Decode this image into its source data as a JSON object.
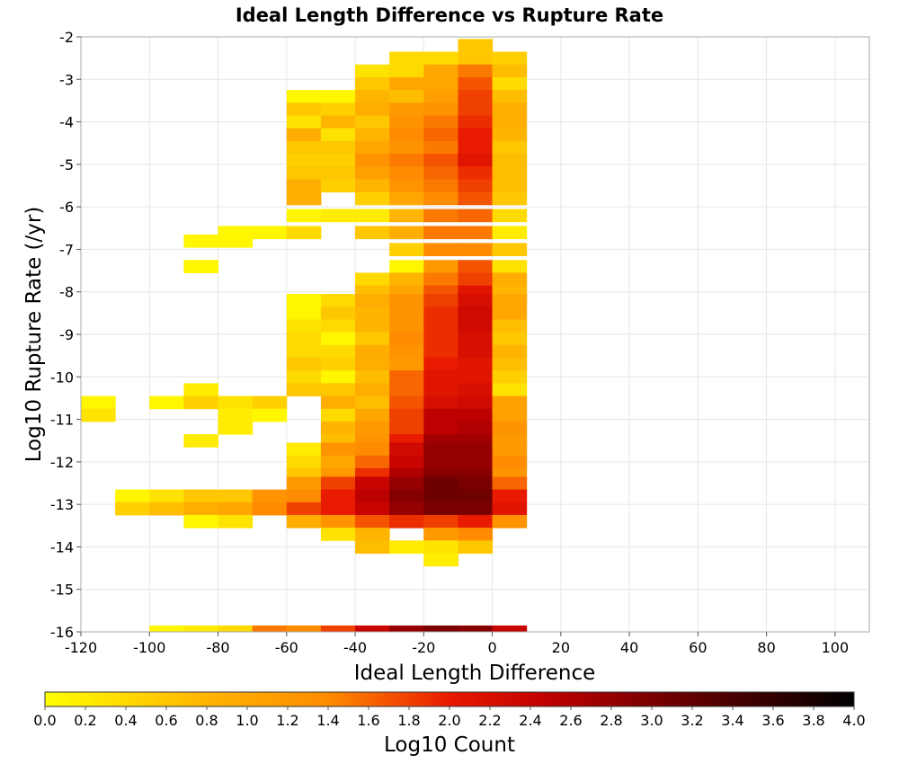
{
  "chart_data": {
    "type": "heatmap",
    "title": "Ideal Length Difference vs Rupture Rate",
    "xlabel": "Ideal Length Difference",
    "ylabel": "Log10 Rupture Rate (/yr)",
    "xlim": [
      -120,
      110
    ],
    "ylim": [
      -16,
      -2
    ],
    "x_ticks": [
      "-120",
      "-100",
      "-80",
      "-60",
      "-40",
      "-20",
      "0",
      "20",
      "40",
      "60",
      "80",
      "100"
    ],
    "y_ticks": [
      "-2",
      "-3",
      "-4",
      "-5",
      "-6",
      "-7",
      "-8",
      "-9",
      "-10",
      "-11",
      "-12",
      "-13",
      "-14",
      "-15",
      "-16"
    ],
    "grid": true,
    "bin_width_x": 10,
    "bin_width_y": 0.3,
    "x_bin_starts": [
      -120,
      -110,
      -100,
      -90,
      -80,
      -70,
      -60,
      -50,
      -40,
      -30,
      -20,
      -10,
      0
    ],
    "colorbar": {
      "label": "Log10 Count",
      "min": 0.0,
      "max": 4.0,
      "ticks": [
        "0.0",
        "0.2",
        "0.4",
        "0.6",
        "0.8",
        "1.0",
        "1.2",
        "1.4",
        "1.6",
        "1.8",
        "2.0",
        "2.2",
        "2.4",
        "2.6",
        "2.8",
        "3.0",
        "3.2",
        "3.4",
        "3.6",
        "3.8",
        "4.0"
      ],
      "placement": "bottom"
    },
    "columns": [
      {
        "x": -120,
        "cells": [
          [
            -10.6,
            0.1
          ],
          [
            -10.9,
            0.3
          ]
        ]
      },
      {
        "x": -110,
        "cells": [
          [
            -12.8,
            0.1
          ],
          [
            -13.1,
            0.5
          ]
        ]
      },
      {
        "x": -100,
        "cells": [
          [
            -10.6,
            0.1
          ],
          [
            -12.8,
            0.3
          ],
          [
            -13.1,
            0.7
          ],
          [
            -16.0,
            0.1
          ]
        ]
      },
      {
        "x": -90,
        "cells": [
          [
            -6.8,
            0.1
          ],
          [
            -7.4,
            0.1
          ],
          [
            -10.3,
            0.2
          ],
          [
            -10.6,
            0.5
          ],
          [
            -11.5,
            0.2
          ],
          [
            -12.8,
            0.6
          ],
          [
            -13.1,
            0.9
          ],
          [
            -13.4,
            0.1
          ],
          [
            -16.0,
            0.2
          ]
        ]
      },
      {
        "x": -80,
        "cells": [
          [
            -6.6,
            0.1
          ],
          [
            -6.8,
            0.1
          ],
          [
            -10.6,
            0.3
          ],
          [
            -10.9,
            0.2
          ],
          [
            -11.2,
            0.2
          ],
          [
            -12.8,
            0.6
          ],
          [
            -13.1,
            1.0
          ],
          [
            -13.4,
            0.3
          ],
          [
            -16.0,
            0.4
          ]
        ]
      },
      {
        "x": -70,
        "cells": [
          [
            -6.6,
            0.1
          ],
          [
            -10.6,
            0.5
          ],
          [
            -10.9,
            0.1
          ],
          [
            -12.8,
            1.3
          ],
          [
            -13.1,
            1.4
          ],
          [
            -16.0,
            1.5
          ]
        ]
      },
      {
        "x": -60,
        "cells": [
          [
            -3.4,
            0.1
          ],
          [
            -3.7,
            0.6
          ],
          [
            -4.0,
            0.3
          ],
          [
            -4.3,
            0.9
          ],
          [
            -4.6,
            0.6
          ],
          [
            -4.9,
            0.5
          ],
          [
            -5.2,
            0.6
          ],
          [
            -5.5,
            0.9
          ],
          [
            -5.8,
            0.9
          ],
          [
            -6.2,
            0.1
          ],
          [
            -6.6,
            0.4
          ],
          [
            -8.2,
            0.1
          ],
          [
            -8.5,
            0.1
          ],
          [
            -8.8,
            0.3
          ],
          [
            -9.1,
            0.4
          ],
          [
            -9.4,
            0.4
          ],
          [
            -9.7,
            0.6
          ],
          [
            -10.0,
            0.4
          ],
          [
            -10.3,
            0.6
          ],
          [
            -11.7,
            0.2
          ],
          [
            -12.0,
            0.4
          ],
          [
            -12.3,
            0.6
          ],
          [
            -12.5,
            1.2
          ],
          [
            -12.8,
            1.4
          ],
          [
            -13.1,
            1.8
          ],
          [
            -13.4,
            0.9
          ],
          [
            -16.0,
            1.4
          ]
        ]
      },
      {
        "x": -50,
        "cells": [
          [
            -3.4,
            0.1
          ],
          [
            -3.7,
            0.5
          ],
          [
            -4.0,
            0.8
          ],
          [
            -4.3,
            0.3
          ],
          [
            -4.6,
            0.6
          ],
          [
            -4.9,
            0.5
          ],
          [
            -5.2,
            0.6
          ],
          [
            -5.5,
            0.5
          ],
          [
            -6.2,
            0.2
          ],
          [
            -8.2,
            0.4
          ],
          [
            -8.5,
            0.6
          ],
          [
            -8.8,
            0.4
          ],
          [
            -9.1,
            0.1
          ],
          [
            -9.4,
            0.4
          ],
          [
            -9.7,
            0.5
          ],
          [
            -10.0,
            0.1
          ],
          [
            -10.3,
            0.6
          ],
          [
            -10.6,
            0.9
          ],
          [
            -10.9,
            0.4
          ],
          [
            -11.2,
            0.8
          ],
          [
            -11.5,
            0.7
          ],
          [
            -11.7,
            1.3
          ],
          [
            -12.0,
            1.0
          ],
          [
            -12.3,
            1.2
          ],
          [
            -12.5,
            1.8
          ],
          [
            -12.8,
            2.0
          ],
          [
            -13.1,
            2.0
          ],
          [
            -13.4,
            1.3
          ],
          [
            -13.7,
            0.3
          ],
          [
            -16.0,
            1.8
          ]
        ]
      },
      {
        "x": -40,
        "cells": [
          [
            -2.8,
            0.3
          ],
          [
            -3.1,
            0.6
          ],
          [
            -3.4,
            0.8
          ],
          [
            -3.7,
            0.9
          ],
          [
            -4.0,
            0.6
          ],
          [
            -4.3,
            0.8
          ],
          [
            -4.6,
            1.0
          ],
          [
            -4.9,
            1.3
          ],
          [
            -5.2,
            1.1
          ],
          [
            -5.5,
            0.8
          ],
          [
            -5.8,
            0.5
          ],
          [
            -6.2,
            0.2
          ],
          [
            -6.6,
            0.6
          ],
          [
            -7.7,
            0.4
          ],
          [
            -8.0,
            0.7
          ],
          [
            -8.2,
            0.9
          ],
          [
            -8.5,
            0.8
          ],
          [
            -8.8,
            0.8
          ],
          [
            -9.1,
            0.6
          ],
          [
            -9.4,
            0.9
          ],
          [
            -9.7,
            0.9
          ],
          [
            -10.0,
            0.7
          ],
          [
            -10.3,
            0.9
          ],
          [
            -10.6,
            0.7
          ],
          [
            -10.9,
            1.0
          ],
          [
            -11.2,
            1.2
          ],
          [
            -11.5,
            1.3
          ],
          [
            -11.7,
            1.4
          ],
          [
            -12.0,
            1.6
          ],
          [
            -12.3,
            1.9
          ],
          [
            -12.5,
            2.4
          ],
          [
            -12.8,
            2.5
          ],
          [
            -13.1,
            2.4
          ],
          [
            -13.4,
            1.7
          ],
          [
            -13.7,
            0.8
          ],
          [
            -14.0,
            0.7
          ],
          [
            -16.0,
            2.4
          ]
        ]
      },
      {
        "x": -30,
        "cells": [
          [
            -2.5,
            0.4
          ],
          [
            -2.8,
            0.4
          ],
          [
            -3.1,
            1.0
          ],
          [
            -3.4,
            0.7
          ],
          [
            -3.7,
            1.2
          ],
          [
            -4.0,
            1.3
          ],
          [
            -4.3,
            1.4
          ],
          [
            -4.6,
            1.3
          ],
          [
            -4.9,
            1.5
          ],
          [
            -5.2,
            1.4
          ],
          [
            -5.5,
            1.3
          ],
          [
            -5.8,
            1.0
          ],
          [
            -6.2,
            0.8
          ],
          [
            -6.6,
            0.9
          ],
          [
            -7.0,
            0.5
          ],
          [
            -7.4,
            0.1
          ],
          [
            -7.7,
            0.8
          ],
          [
            -8.0,
            1.0
          ],
          [
            -8.2,
            1.3
          ],
          [
            -8.5,
            1.3
          ],
          [
            -8.8,
            1.3
          ],
          [
            -9.1,
            1.4
          ],
          [
            -9.4,
            1.3
          ],
          [
            -9.7,
            1.2
          ],
          [
            -10.0,
            1.6
          ],
          [
            -10.3,
            1.6
          ],
          [
            -10.6,
            1.7
          ],
          [
            -10.9,
            1.8
          ],
          [
            -11.2,
            1.8
          ],
          [
            -11.5,
            2.0
          ],
          [
            -11.7,
            2.3
          ],
          [
            -12.0,
            2.4
          ],
          [
            -12.3,
            2.6
          ],
          [
            -12.5,
            2.8
          ],
          [
            -12.8,
            2.9
          ],
          [
            -13.1,
            2.8
          ],
          [
            -13.4,
            1.9
          ],
          [
            -14.0,
            0.2
          ],
          [
            -16.0,
            2.8
          ]
        ]
      },
      {
        "x": -20,
        "cells": [
          [
            -2.5,
            0.4
          ],
          [
            -2.8,
            1.0
          ],
          [
            -3.1,
            1.0
          ],
          [
            -3.4,
            1.1
          ],
          [
            -3.7,
            1.3
          ],
          [
            -4.0,
            1.5
          ],
          [
            -4.3,
            1.6
          ],
          [
            -4.6,
            1.5
          ],
          [
            -4.9,
            1.7
          ],
          [
            -5.2,
            1.6
          ],
          [
            -5.5,
            1.5
          ],
          [
            -5.8,
            1.4
          ],
          [
            -6.2,
            1.5
          ],
          [
            -6.6,
            1.5
          ],
          [
            -7.0,
            1.4
          ],
          [
            -7.4,
            1.2
          ],
          [
            -7.7,
            1.5
          ],
          [
            -8.0,
            1.7
          ],
          [
            -8.2,
            1.8
          ],
          [
            -8.5,
            1.9
          ],
          [
            -8.8,
            1.9
          ],
          [
            -9.1,
            1.9
          ],
          [
            -9.4,
            1.9
          ],
          [
            -9.7,
            2.0
          ],
          [
            -10.0,
            2.1
          ],
          [
            -10.3,
            2.1
          ],
          [
            -10.6,
            2.2
          ],
          [
            -10.9,
            2.5
          ],
          [
            -11.2,
            2.5
          ],
          [
            -11.5,
            2.7
          ],
          [
            -11.7,
            2.8
          ],
          [
            -12.0,
            2.8
          ],
          [
            -12.3,
            2.9
          ],
          [
            -12.5,
            3.1
          ],
          [
            -12.8,
            3.1
          ],
          [
            -13.1,
            3.0
          ],
          [
            -13.4,
            1.8
          ],
          [
            -13.7,
            1.2
          ],
          [
            -14.0,
            0.3
          ],
          [
            -14.3,
            0.2
          ],
          [
            -16.0,
            3.0
          ]
        ]
      },
      {
        "x": -10,
        "cells": [
          [
            -2.2,
            0.6
          ],
          [
            -2.5,
            0.6
          ],
          [
            -2.8,
            1.5
          ],
          [
            -3.1,
            1.7
          ],
          [
            -3.4,
            1.8
          ],
          [
            -3.7,
            1.8
          ],
          [
            -4.0,
            1.9
          ],
          [
            -4.3,
            2.0
          ],
          [
            -4.6,
            2.0
          ],
          [
            -4.9,
            2.1
          ],
          [
            -5.2,
            1.9
          ],
          [
            -5.5,
            1.8
          ],
          [
            -5.8,
            1.7
          ],
          [
            -6.2,
            1.6
          ],
          [
            -6.6,
            1.5
          ],
          [
            -7.0,
            1.4
          ],
          [
            -7.4,
            1.7
          ],
          [
            -7.7,
            1.8
          ],
          [
            -8.0,
            2.1
          ],
          [
            -8.2,
            2.2
          ],
          [
            -8.5,
            2.3
          ],
          [
            -8.8,
            2.3
          ],
          [
            -9.1,
            2.2
          ],
          [
            -9.4,
            2.2
          ],
          [
            -9.7,
            2.1
          ],
          [
            -10.0,
            2.1
          ],
          [
            -10.3,
            2.2
          ],
          [
            -10.6,
            2.3
          ],
          [
            -10.9,
            2.5
          ],
          [
            -11.2,
            2.6
          ],
          [
            -11.5,
            2.7
          ],
          [
            -11.7,
            2.8
          ],
          [
            -12.0,
            2.8
          ],
          [
            -12.3,
            2.9
          ],
          [
            -12.5,
            3.0
          ],
          [
            -12.8,
            3.1
          ],
          [
            -13.1,
            3.0
          ],
          [
            -13.4,
            2.0
          ],
          [
            -13.7,
            1.4
          ],
          [
            -14.0,
            0.6
          ],
          [
            -16.0,
            2.9
          ]
        ]
      },
      {
        "x": 0,
        "cells": [
          [
            -2.5,
            0.5
          ],
          [
            -2.8,
            0.7
          ],
          [
            -3.1,
            0.4
          ],
          [
            -3.4,
            0.7
          ],
          [
            -3.7,
            0.9
          ],
          [
            -4.0,
            0.9
          ],
          [
            -4.3,
            0.8
          ],
          [
            -4.6,
            0.6
          ],
          [
            -4.9,
            0.7
          ],
          [
            -5.2,
            0.7
          ],
          [
            -5.5,
            0.7
          ],
          [
            -5.8,
            0.6
          ],
          [
            -6.2,
            0.4
          ],
          [
            -6.6,
            0.2
          ],
          [
            -7.0,
            0.6
          ],
          [
            -7.4,
            0.3
          ],
          [
            -7.7,
            0.9
          ],
          [
            -8.0,
            0.8
          ],
          [
            -8.2,
            1.0
          ],
          [
            -8.5,
            1.0
          ],
          [
            -8.8,
            0.7
          ],
          [
            -9.1,
            0.6
          ],
          [
            -9.4,
            0.8
          ],
          [
            -9.7,
            0.7
          ],
          [
            -10.0,
            0.5
          ],
          [
            -10.3,
            0.3
          ],
          [
            -10.6,
            1.1
          ],
          [
            -10.9,
            1.1
          ],
          [
            -11.2,
            1.3
          ],
          [
            -11.5,
            1.2
          ],
          [
            -11.7,
            1.2
          ],
          [
            -12.0,
            1.4
          ],
          [
            -12.3,
            1.3
          ],
          [
            -12.5,
            1.6
          ],
          [
            -12.8,
            2.0
          ],
          [
            -13.1,
            2.1
          ],
          [
            -13.4,
            1.3
          ],
          [
            -16.0,
            2.4
          ]
        ]
      }
    ]
  }
}
